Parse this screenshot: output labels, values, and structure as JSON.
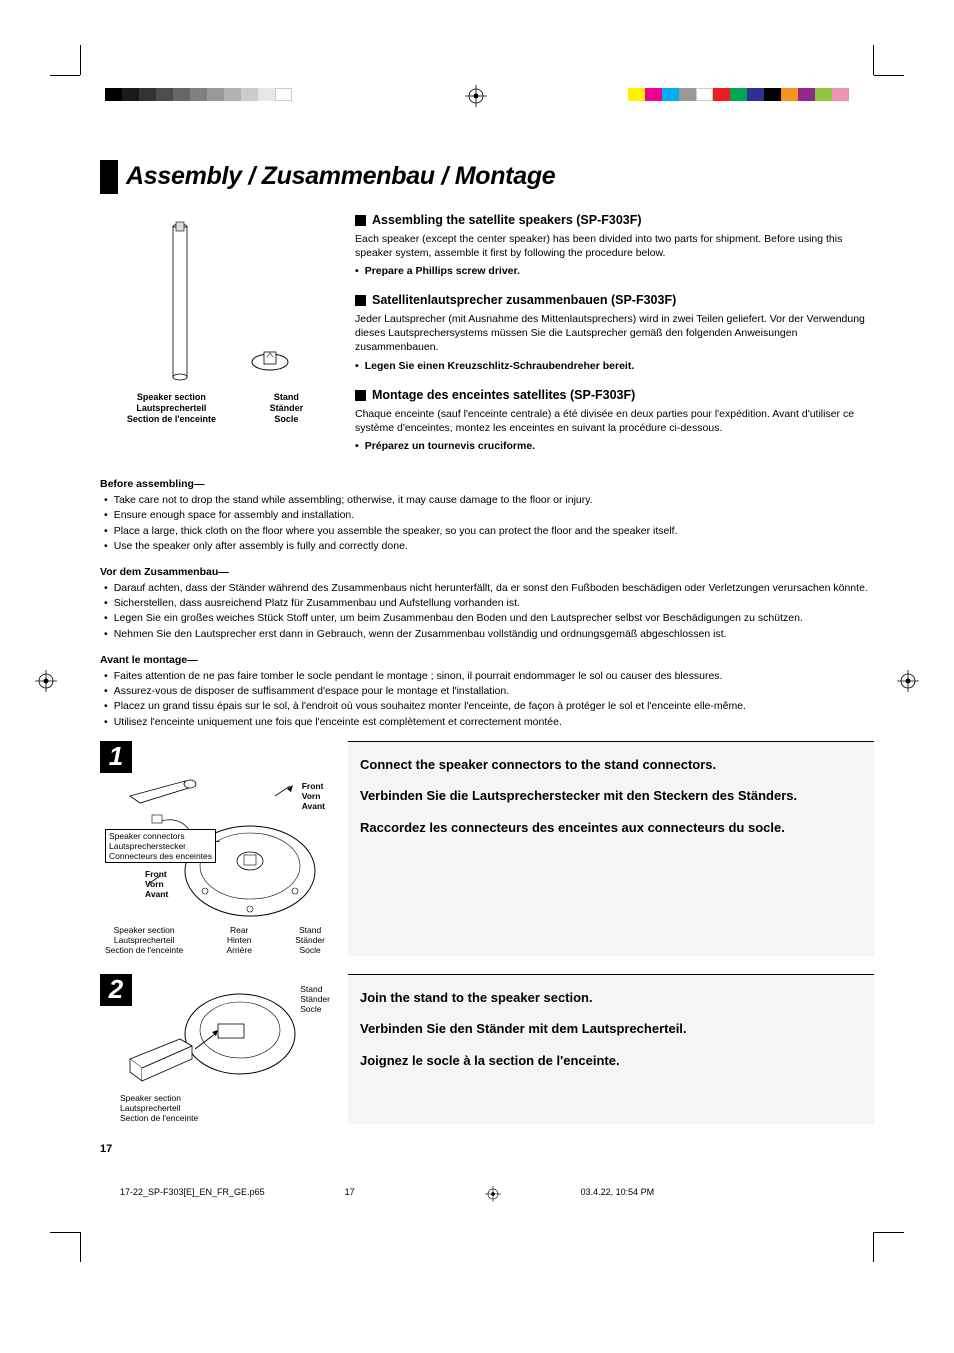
{
  "colors": {
    "gray_bar": [
      "#000000",
      "#1a1a1a",
      "#333333",
      "#4d4d4d",
      "#666666",
      "#808080",
      "#999999",
      "#b3b3b3",
      "#cccccc",
      "#e6e6e6",
      "#ffffff"
    ],
    "cmyk_bar": [
      "#ffff00",
      "#ff00ff",
      "#00ffff",
      "#00a651",
      "#ed1c24",
      "#2e3192",
      "#fff200",
      "#ec008c",
      "#00aeef",
      "#8dc63f",
      "#f7941d",
      "#92278f"
    ],
    "step_bg": "#f5f5f5"
  },
  "title": "Assembly / Zusammenbau / Montage",
  "top_diagram": {
    "speaker_labels": [
      "Speaker section",
      "Lautsprecherteil",
      "Section de l'enceinte"
    ],
    "stand_labels": [
      "Stand",
      "Ständer",
      "Socle"
    ]
  },
  "sections": [
    {
      "heading": "Assembling the satellite speakers (SP-F303F)",
      "body": "Each speaker (except the center speaker) has been divided into two parts for shipment. Before using this speaker system, assemble it first by following the procedure below.",
      "bullet": "Prepare a Phillips screw driver."
    },
    {
      "heading": "Satellitenlautsprecher zusammenbauen (SP-F303F)",
      "body": "Jeder Lautsprecher (mit Ausnahme des Mittenlautsprechers) wird in zwei Teilen geliefert. Vor der Verwendung dieses Lautsprechersystems müssen Sie die Lautsprecher gemäß den folgenden Anweisungen zusammenbauen.",
      "bullet": "Legen Sie einen Kreuzschlitz-Schraubendreher bereit."
    },
    {
      "heading": "Montage des enceintes satellites (SP-F303F)",
      "body": "Chaque enceinte (sauf l'enceinte centrale) a été divisée en deux parties pour l'expédition. Avant d'utiliser ce système d'enceintes, montez les enceintes en suivant la procédure ci-dessous.",
      "bullet": "Préparez un tournevis cruciforme."
    }
  ],
  "warnings": [
    {
      "title": "Before assembling—",
      "items": [
        "Take care not to drop the stand while assembling; otherwise, it may cause damage to the floor or injury.",
        "Ensure enough space for assembly and installation.",
        "Place a large, thick cloth on the floor where you assemble the speaker, so you can protect the floor and the speaker itself.",
        "Use the speaker only after assembly is fully and correctly done."
      ]
    },
    {
      "title": "Vor dem Zusammenbau—",
      "items": [
        "Darauf achten, dass der Ständer während des Zusammenbaus nicht herunterfällt, da er sonst den Fußboden beschädigen oder Verletzungen verursachen könnte.",
        "Sicherstellen, dass ausreichend Platz für Zusammenbau und Aufstellung vorhanden ist.",
        "Legen Sie ein großes weiches Stück Stoff unter, um beim Zusammenbau den Boden und den Lautsprecher selbst vor Beschädigungen zu schützen.",
        "Nehmen Sie den Lautsprecher erst dann in Gebrauch, wenn der Zusammenbau vollständig und ordnungsgemäß abgeschlossen ist."
      ]
    },
    {
      "title": "Avant le montage—",
      "items": [
        "Faites attention de ne pas faire tomber le socle pendant le montage ; sinon, il pourrait endommager le sol ou causer des blessures.",
        "Assurez-vous de disposer de suffisamment d'espace pour le montage et l'installation.",
        "Placez un grand tissu épais sur le sol, à l'endroit où vous souhaitez monter l'enceinte, de façon à protéger le sol et l'enceinte elle-même.",
        "Utilisez l'enceinte uniquement une fois que l'enceinte est complètement et correctement montée."
      ]
    }
  ],
  "step1": {
    "num": "1",
    "lines": [
      "Connect the speaker connectors to the stand connectors.",
      "Verbinden Sie die Lautsprecherstecker mit den Steckern des Ständers.",
      "Raccordez les connecteurs des enceintes aux connecteurs du socle."
    ],
    "labels": {
      "front": [
        "Front",
        "Vorn",
        "Avant"
      ],
      "connectors": [
        "Speaker connectors",
        "Lautsprecherstecker",
        "Connecteurs des enceintes"
      ],
      "speaker": [
        "Speaker section",
        "Lautsprecherteil",
        "Section de l'enceinte"
      ],
      "rear": [
        "Rear",
        "Hinten",
        "Arrière"
      ],
      "stand": [
        "Stand",
        "Ständer",
        "Socle"
      ]
    }
  },
  "step2": {
    "num": "2",
    "lines": [
      "Join the stand to the speaker section.",
      "Verbinden Sie den Ständer mit dem Lautsprecherteil.",
      "Joignez le socle à la section de l'enceinte."
    ],
    "labels": {
      "stand": [
        "Stand",
        "Ständer",
        "Socle"
      ],
      "speaker": [
        "Speaker section",
        "Lautsprecherteil",
        "Section de l'enceinte"
      ]
    }
  },
  "page_number": "17",
  "footer": {
    "file": "17-22_SP-F303[E]_EN_FR_GE.p65",
    "page": "17",
    "date": "03.4.22, 10:54 PM"
  }
}
